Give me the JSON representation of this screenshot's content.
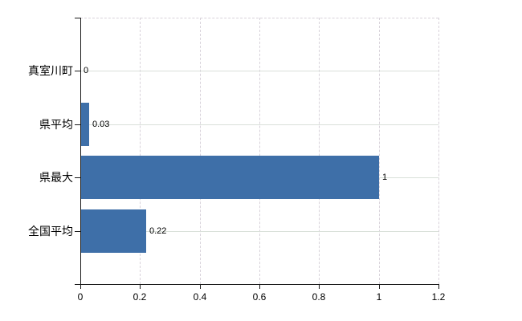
{
  "chart": {
    "background": "#ffffff",
    "bar_color": "#3e6fa8",
    "axis_color": "#1a1a1a",
    "grid_h_color": "#d9e0d9",
    "grid_v_color": "#d8d2da",
    "text_color": "#000000"
  },
  "chart_data": {
    "type": "bar",
    "orientation": "horizontal",
    "title": "",
    "xlabel": "",
    "ylabel": "",
    "categories": [
      "真室川町",
      "県平均",
      "県最大",
      "全国平均"
    ],
    "values": [
      0,
      0.03,
      1,
      0.22
    ],
    "value_labels": [
      "0",
      "0.03",
      "1",
      "0.22"
    ],
    "xlim": [
      0,
      1.2
    ],
    "x_ticks": [
      0,
      0.2,
      0.4,
      0.6,
      0.8,
      1,
      1.2
    ],
    "x_tick_labels": [
      "0",
      "0.2",
      "0.4",
      "0.6",
      "0.8",
      "1",
      "1.2"
    ],
    "grid": true,
    "legend": false
  }
}
